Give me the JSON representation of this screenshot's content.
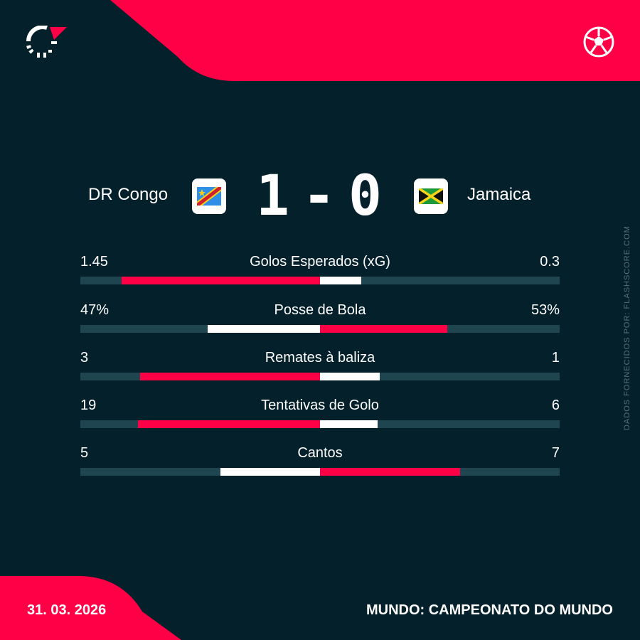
{
  "colors": {
    "background": "#03202b",
    "accent": "#ff0046",
    "track": "#1e4550",
    "secondary": "#ffffff"
  },
  "header": {
    "logo_icon": "flashscore-logo",
    "sport_icon": "soccer-ball-icon"
  },
  "match": {
    "home_team": "DR Congo",
    "away_team": "Jamaica",
    "home_flag": "dr-congo-flag",
    "away_flag": "jamaica-flag",
    "home_score": "1",
    "separator": "-",
    "away_score": "0"
  },
  "stats": [
    {
      "label": "Golos Esperados (xG)",
      "home": "1.45",
      "away": "0.3",
      "home_value": 1.45,
      "away_value": 0.3
    },
    {
      "label": "Posse de Bola",
      "home": "47%",
      "away": "53%",
      "home_value": 47,
      "away_value": 53
    },
    {
      "label": "Remates à baliza",
      "home": "3",
      "away": "1",
      "home_value": 3,
      "away_value": 1
    },
    {
      "label": "Tentativas de Golo",
      "home": "19",
      "away": "6",
      "home_value": 19,
      "away_value": 6
    },
    {
      "label": "Cantos",
      "home": "5",
      "away": "7",
      "home_value": 5,
      "away_value": 7
    }
  ],
  "side_note": "DADOS FORNECIDOS POR: FLASHSCORE.COM",
  "footer": {
    "date": "31. 03. 2026",
    "competition": "MUNDO: CAMPEONATO DO MUNDO"
  }
}
